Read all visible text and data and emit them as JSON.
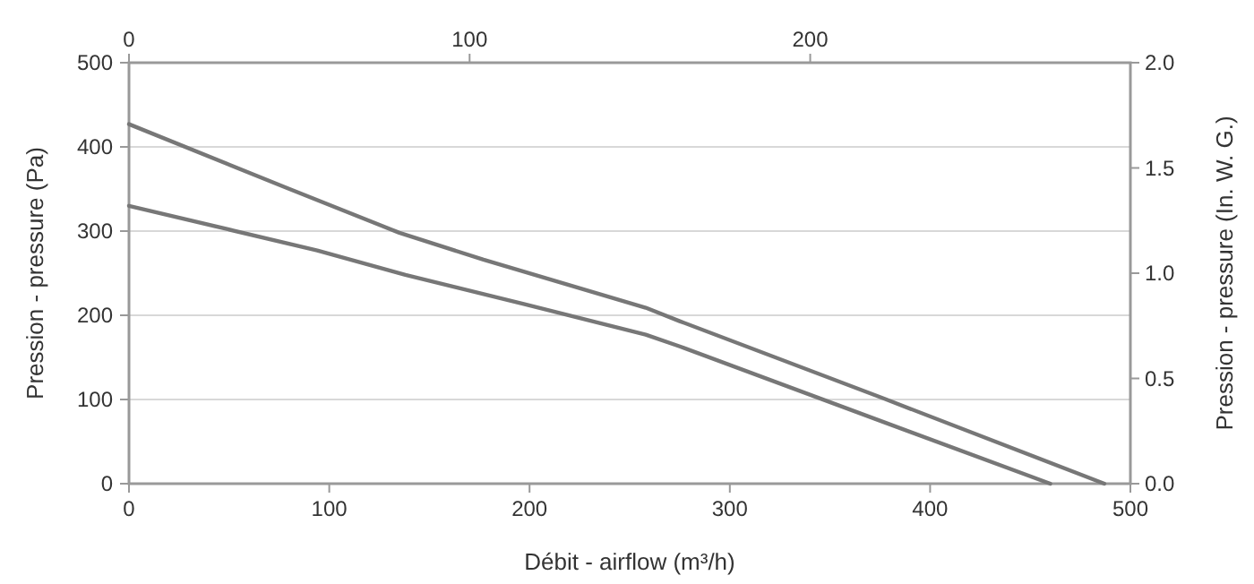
{
  "chart_data": {
    "type": "line",
    "xlabel": "Débit - airflow (m³/h)",
    "ylabel": "Pression - pressure (Pa)",
    "y2label": "Pression - pressure (In. W. G.)",
    "xlim": [
      0,
      500
    ],
    "xticks": [
      0,
      100,
      200,
      300,
      400,
      500
    ],
    "ylim": [
      0,
      500
    ],
    "yticks": [
      0,
      100,
      200,
      300,
      400,
      500
    ],
    "x2lim": [
      0,
      294
    ],
    "x2ticks": [
      0,
      100,
      200
    ],
    "y2lim": [
      0,
      2.0
    ],
    "y2ticks": [
      {
        "value": 0,
        "label": "0.0"
      },
      {
        "value": 0.5,
        "label": "0.5"
      },
      {
        "value": 1,
        "label": "1.0"
      },
      {
        "value": 1.5,
        "label": "1.5"
      },
      {
        "value": 2,
        "label": "2.0"
      }
    ],
    "grid": "y",
    "line_style": "solid",
    "marker": "none",
    "series": [
      {
        "color": "#777777",
        "x": [
          0,
          79,
          135,
          177,
          258,
          275,
          377,
          487
        ],
        "values": [
          427,
          351,
          298,
          266,
          209,
          193,
          101,
          0
        ]
      },
      {
        "color": "#777777",
        "x": [
          0,
          94,
          138,
          198,
          258,
          275,
          377,
          460
        ],
        "values": [
          330,
          277,
          248,
          213,
          177,
          163,
          73,
          0
        ]
      }
    ]
  }
}
